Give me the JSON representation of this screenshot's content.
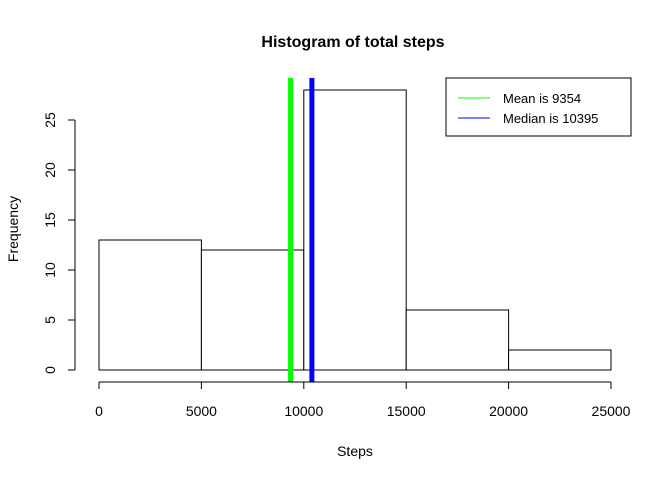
{
  "chart_data": {
    "type": "bar",
    "title": "Histogram of total steps",
    "xlabel": "Steps",
    "ylabel": "Frequency",
    "bins": [
      {
        "from": 0,
        "to": 5000,
        "count": 13
      },
      {
        "from": 5000,
        "to": 10000,
        "count": 12
      },
      {
        "from": 10000,
        "to": 15000,
        "count": 28
      },
      {
        "from": 15000,
        "to": 20000,
        "count": 6
      },
      {
        "from": 20000,
        "to": 25000,
        "count": 2
      }
    ],
    "xlim": [
      0,
      25000
    ],
    "ylim": [
      0,
      28
    ],
    "x_ticks": [
      {
        "value": 0,
        "label": "0"
      },
      {
        "value": 5000,
        "label": "5000"
      },
      {
        "value": 10000,
        "label": "10000"
      },
      {
        "value": 15000,
        "label": "15000"
      },
      {
        "value": 20000,
        "label": "20000"
      },
      {
        "value": 25000,
        "label": "25000"
      }
    ],
    "y_ticks": [
      {
        "value": 0,
        "label": "0"
      },
      {
        "value": 5,
        "label": "5"
      },
      {
        "value": 10,
        "label": "10"
      },
      {
        "value": 15,
        "label": "15"
      },
      {
        "value": 20,
        "label": "20"
      },
      {
        "value": 25,
        "label": "25"
      }
    ],
    "reference_lines": [
      {
        "value": 9354,
        "color": "#00ff00",
        "legend": "Mean is 9354"
      },
      {
        "value": 10395,
        "color": "#0000ff",
        "legend": "Median is  10395"
      }
    ],
    "legend_position": "top-right",
    "grid": false,
    "bar_fill": "#ffffff",
    "bar_stroke": "#000000"
  }
}
